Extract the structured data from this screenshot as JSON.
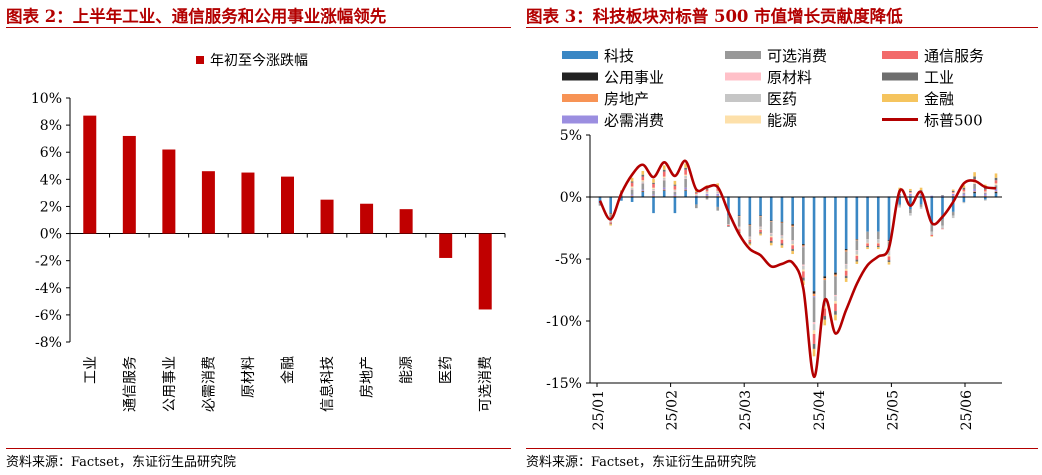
{
  "colors": {
    "accent_red": "#b30000",
    "bar_red": "#c00000"
  },
  "left": {
    "title": "图表 2：上半年工业、通信服务和公用事业涨幅领先",
    "source": "资料来源：Factset，东证衍生品研究院",
    "chart_data": {
      "type": "bar",
      "legend": [
        "年初至今涨跌幅"
      ],
      "legend_position": "top-center",
      "categories": [
        "工业",
        "通信服务",
        "公用事业",
        "必需消费",
        "原材料",
        "金融",
        "信息科技",
        "房地产",
        "能源",
        "医药",
        "可选消费"
      ],
      "series": [
        {
          "name": "年初至今涨跌幅",
          "color": "#c00000",
          "values": [
            8.7,
            7.2,
            6.2,
            4.6,
            4.5,
            4.2,
            2.5,
            2.2,
            1.8,
            -1.8,
            -5.6
          ]
        }
      ],
      "ylim": [
        -8,
        10
      ],
      "yticks": [
        10,
        8,
        6,
        4,
        2,
        0,
        -2,
        -4,
        -6,
        -8
      ],
      "ytick_labels": [
        "10%",
        "8%",
        "6%",
        "4%",
        "2%",
        "0%",
        "-2%",
        "-4%",
        "-6%",
        "-8%"
      ],
      "grid": false
    }
  },
  "right": {
    "title": "图表 3：科技板块对标普 500 市值增长贡献度降低",
    "source": "资料来源：Factset，东证衍生品研究院",
    "chart_data": {
      "type": "bar",
      "stacked": true,
      "legend_position": "top",
      "ylim": [
        -15,
        5
      ],
      "yticks": [
        5,
        0,
        -5,
        -10,
        -15
      ],
      "ytick_labels": [
        "5%",
        "0%",
        "-5%",
        "-10%",
        "-15%"
      ],
      "x_tick_labels": [
        "25/01",
        "25/02",
        "25/03",
        "25/04",
        "25/05",
        "25/06"
      ],
      "bar_count": 38,
      "grid": false,
      "series": [
        {
          "name": "科技",
          "color": "#3a87c4",
          "values": [
            -0.5,
            -1.3,
            -0.3,
            -0.4,
            0.4,
            -1.3,
            0.5,
            -1.3,
            0.5,
            -0.6,
            0.0,
            -0.8,
            -1.5,
            -1.5,
            -2.2,
            -1.5,
            -1.9,
            -2.0,
            -2.2,
            -3.8,
            -7.6,
            -6.4,
            -6.1,
            -4.2,
            -3.4,
            -2.8,
            -2.8,
            -3.5,
            -0.6,
            -1.0,
            -0.6,
            -2.2,
            -1.8,
            -1.2,
            -0.4,
            0.3,
            -0.2,
            0.3
          ]
        },
        {
          "name": "公用事业",
          "color": "#222222",
          "values": [
            0.0,
            -0.05,
            0.0,
            0.05,
            0.05,
            0.05,
            0.05,
            0.05,
            0.05,
            0.0,
            0.05,
            0.05,
            0.0,
            -0.05,
            -0.05,
            -0.05,
            -0.05,
            -0.05,
            -0.1,
            -0.1,
            -0.2,
            -0.15,
            -0.15,
            -0.1,
            -0.05,
            0.0,
            0.0,
            -0.05,
            0.05,
            0.05,
            0.05,
            0.0,
            0.0,
            0.05,
            0.05,
            0.1,
            0.05,
            0.1
          ]
        },
        {
          "name": "房地产",
          "color": "#f79355",
          "values": [
            0.0,
            -0.05,
            0.0,
            0.05,
            0.05,
            0.05,
            0.05,
            0.05,
            0.05,
            0.0,
            0.05,
            0.05,
            0.0,
            -0.05,
            -0.05,
            -0.05,
            -0.05,
            -0.05,
            -0.1,
            -0.1,
            -0.2,
            -0.15,
            -0.15,
            -0.1,
            -0.05,
            0.0,
            0.0,
            -0.05,
            0.05,
            0.05,
            0.05,
            0.0,
            0.0,
            0.05,
            0.05,
            0.05,
            0.05,
            0.05
          ]
        },
        {
          "name": "必需消费",
          "color": "#9b8ee0",
          "values": [
            0.0,
            0.0,
            0.05,
            0.1,
            0.1,
            0.1,
            0.15,
            0.1,
            0.15,
            0.1,
            0.15,
            0.15,
            0.05,
            0.0,
            0.0,
            0.0,
            0.05,
            0.05,
            0.0,
            -0.05,
            -0.1,
            0.0,
            0.0,
            0.0,
            0.05,
            0.05,
            0.05,
            0.05,
            0.15,
            0.15,
            0.15,
            0.1,
            0.1,
            0.15,
            0.15,
            0.2,
            0.15,
            0.2
          ]
        },
        {
          "name": "可选消费",
          "color": "#999999",
          "values": [
            -0.2,
            -0.5,
            0.1,
            0.4,
            0.5,
            0.3,
            0.6,
            0.2,
            0.7,
            -0.3,
            -0.2,
            -0.3,
            -0.7,
            -0.8,
            -0.9,
            -0.8,
            -0.9,
            -1.0,
            -1.1,
            -1.4,
            -2.0,
            -1.6,
            -1.5,
            -1.0,
            -0.8,
            -0.6,
            -0.6,
            -0.7,
            -0.1,
            -0.3,
            -0.2,
            -0.6,
            -0.5,
            -0.3,
            0.1,
            0.4,
            0.1,
            0.3
          ]
        },
        {
          "name": "原材料",
          "color": "#ffc0c8",
          "values": [
            0.0,
            -0.05,
            0.05,
            0.05,
            0.05,
            0.05,
            0.05,
            0.05,
            0.05,
            0.0,
            0.05,
            0.05,
            0.0,
            -0.05,
            -0.05,
            -0.05,
            -0.05,
            -0.05,
            -0.05,
            -0.1,
            -0.15,
            -0.1,
            -0.1,
            -0.05,
            -0.05,
            0.0,
            0.0,
            -0.05,
            0.05,
            0.05,
            0.05,
            0.0,
            0.0,
            0.05,
            0.05,
            0.05,
            0.05,
            0.05
          ]
        },
        {
          "name": "医药",
          "color": "#c6c6c6",
          "values": [
            0.0,
            -0.1,
            0.05,
            0.1,
            0.1,
            0.1,
            0.15,
            0.1,
            0.2,
            0.1,
            0.1,
            0.15,
            -0.05,
            -0.1,
            -0.15,
            -0.15,
            -0.2,
            -0.2,
            -0.25,
            -0.3,
            -0.5,
            -0.4,
            -0.4,
            -0.35,
            -0.3,
            -0.3,
            -0.3,
            -0.35,
            -0.15,
            -0.2,
            -0.15,
            -0.25,
            -0.25,
            -0.2,
            -0.1,
            -0.05,
            -0.1,
            -0.05
          ]
        },
        {
          "name": "能源",
          "color": "#fde0aa",
          "values": [
            0.0,
            0.05,
            0.05,
            0.1,
            0.1,
            0.1,
            0.1,
            0.05,
            0.1,
            0.05,
            0.05,
            0.05,
            0.0,
            -0.05,
            -0.05,
            -0.05,
            -0.1,
            -0.1,
            -0.1,
            -0.15,
            -0.3,
            -0.2,
            -0.2,
            -0.15,
            -0.1,
            -0.05,
            -0.05,
            -0.1,
            0.05,
            0.05,
            0.05,
            0.0,
            0.0,
            0.05,
            0.05,
            0.1,
            0.05,
            0.1
          ]
        },
        {
          "name": "通信服务",
          "color": "#f26b6b",
          "values": [
            0.05,
            -0.1,
            0.1,
            0.3,
            0.3,
            0.3,
            0.4,
            0.3,
            0.4,
            0.1,
            0.15,
            0.2,
            -0.1,
            -0.2,
            -0.2,
            -0.2,
            -0.3,
            -0.3,
            -0.3,
            -0.5,
            -0.8,
            -0.6,
            -0.6,
            -0.4,
            -0.3,
            -0.2,
            -0.2,
            -0.3,
            0.1,
            0.05,
            0.1,
            -0.1,
            -0.05,
            0.05,
            0.15,
            0.25,
            0.15,
            0.25
          ]
        },
        {
          "name": "工业",
          "color": "#6e6e6e",
          "values": [
            0.0,
            -0.05,
            0.05,
            0.1,
            0.15,
            0.1,
            0.15,
            0.1,
            0.15,
            0.05,
            0.1,
            0.1,
            -0.05,
            -0.1,
            -0.1,
            -0.1,
            -0.15,
            -0.15,
            -0.15,
            -0.25,
            -0.4,
            -0.3,
            -0.3,
            -0.2,
            -0.15,
            -0.1,
            -0.1,
            -0.15,
            0.1,
            0.1,
            0.1,
            0.0,
            0.05,
            0.1,
            0.15,
            0.2,
            0.15,
            0.2
          ]
        },
        {
          "name": "金融",
          "color": "#f5c45e",
          "values": [
            0.0,
            -0.1,
            0.1,
            0.3,
            0.3,
            0.3,
            0.35,
            0.3,
            0.35,
            0.2,
            0.25,
            0.3,
            0.0,
            -0.1,
            -0.15,
            -0.15,
            -0.2,
            -0.2,
            -0.25,
            -0.35,
            -0.6,
            -0.45,
            -0.45,
            -0.3,
            -0.2,
            -0.15,
            -0.15,
            -0.2,
            0.2,
            0.15,
            0.2,
            -0.05,
            0.0,
            0.1,
            0.2,
            0.35,
            0.25,
            0.35
          ]
        }
      ],
      "line": {
        "name": "标普500",
        "color": "#b30000",
        "values": [
          -0.3,
          -1.8,
          0.3,
          1.8,
          2.6,
          1.6,
          2.8,
          1.7,
          2.9,
          0.6,
          0.8,
          0.8,
          -1.2,
          -3.0,
          -4.2,
          -4.7,
          -5.6,
          -5.4,
          -5.3,
          -7.4,
          -14.5,
          -8.3,
          -11.0,
          -9.1,
          -7.0,
          -5.5,
          -4.8,
          -4.1,
          0.5,
          -0.7,
          0.4,
          -2.1,
          -1.6,
          -0.4,
          1.1,
          1.3,
          0.8,
          0.7
        ]
      }
    }
  }
}
